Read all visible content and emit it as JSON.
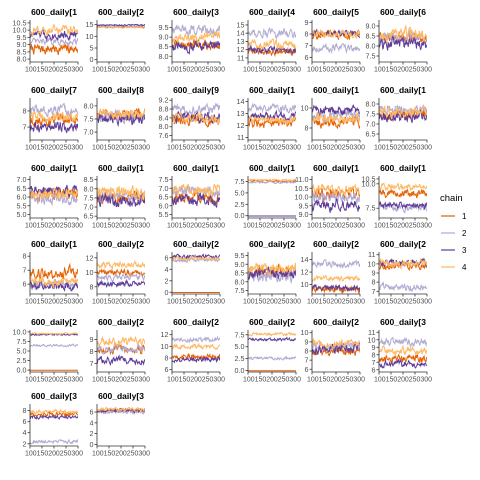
{
  "chart_data": {
    "type": "line",
    "subtype": "trace-plot-facets",
    "x_ticks": [
      "100",
      "150",
      "200",
      "250",
      "300"
    ],
    "x_tick_label_text": "100150200250300",
    "xlim": [
      100,
      300
    ],
    "legend": {
      "title": "chain",
      "position": "right",
      "entries": [
        {
          "label": "1",
          "color": "#E66101"
        },
        {
          "label": "2",
          "color": "#B2ABD2"
        },
        {
          "label": "3",
          "color": "#5E3C99"
        },
        {
          "label": "4",
          "color": "#FDB863"
        }
      ]
    },
    "panels": [
      {
        "title": "600_daily[1",
        "yticks": [
          "10.5",
          "10.0",
          "9.5",
          "9.0",
          "8.5",
          "8.0"
        ],
        "ylim": [
          7.8,
          10.7
        ],
        "levels": [
          8.7,
          9.2,
          9.7,
          10.0
        ],
        "noise": [
          0.35,
          0.2,
          0.3,
          0.3
        ]
      },
      {
        "title": "600_daily[2",
        "yticks": [
          "15",
          "10",
          "5",
          "0"
        ],
        "ylim": [
          -1,
          17
        ],
        "levels": [
          14.0,
          14.3,
          14.8,
          13.8
        ],
        "noise": [
          0.3,
          0.3,
          0.3,
          0.3
        ]
      },
      {
        "title": "600_daily[3",
        "yticks": [
          "9.5",
          "9.0",
          "8.5",
          "8.0"
        ],
        "ylim": [
          7.7,
          9.9
        ],
        "levels": [
          8.6,
          9.4,
          8.5,
          9.0
        ],
        "noise": [
          0.25,
          0.25,
          0.25,
          0.25
        ]
      },
      {
        "title": "600_daily[4",
        "yticks": [
          "15",
          "14",
          "13",
          "12",
          "11"
        ],
        "ylim": [
          10.5,
          15.6
        ],
        "levels": [
          11.8,
          14.0,
          12.0,
          12.6
        ],
        "noise": [
          0.4,
          0.5,
          0.4,
          0.5
        ]
      },
      {
        "title": "600_daily[5",
        "yticks": [
          "9",
          "8",
          "7",
          "6"
        ],
        "ylim": [
          5.6,
          9.2
        ],
        "levels": [
          7.9,
          6.8,
          8.1,
          8.0
        ],
        "noise": [
          0.35,
          0.3,
          0.3,
          0.3
        ]
      },
      {
        "title": "600_daily[6",
        "yticks": [
          "9.0",
          "8.5",
          "8.0",
          "7.5"
        ],
        "ylim": [
          7.2,
          9.3
        ],
        "levels": [
          8.4,
          8.4,
          8.1,
          8.6
        ],
        "noise": [
          0.3,
          0.3,
          0.3,
          0.3
        ]
      },
      {
        "title": "600_daily[7",
        "yticks": [
          "8",
          "7"
        ],
        "ylim": [
          6.2,
          8.8
        ],
        "levels": [
          7.4,
          8.0,
          7.0,
          7.6
        ],
        "noise": [
          0.3,
          0.3,
          0.3,
          0.3
        ]
      },
      {
        "title": "600_daily[8",
        "yticks": [
          "8.0",
          "7.5",
          "7.0"
        ],
        "ylim": [
          6.7,
          8.3
        ],
        "levels": [
          7.7,
          7.6,
          7.5,
          7.7
        ],
        "noise": [
          0.2,
          0.2,
          0.2,
          0.2
        ]
      },
      {
        "title": "600_daily[9",
        "yticks": [
          "9.2",
          "8.8",
          "8.4",
          "8.0",
          "7.6"
        ],
        "ylim": [
          7.4,
          9.3
        ],
        "levels": [
          8.3,
          8.8,
          8.4,
          8.4
        ],
        "noise": [
          0.25,
          0.2,
          0.25,
          0.25
        ]
      },
      {
        "title": "600_daily[1",
        "yticks": [
          "14",
          "13",
          "12",
          "11"
        ],
        "ylim": [
          10.8,
          14.3
        ],
        "levels": [
          12.3,
          13.4,
          12.8,
          12.5
        ],
        "noise": [
          0.4,
          0.3,
          0.3,
          0.3
        ]
      },
      {
        "title": "600_daily[1",
        "yticks": [
          "10",
          "8"
        ],
        "ylim": [
          6.8,
          11.0
        ],
        "levels": [
          8.6,
          9.2,
          9.8,
          9.0
        ],
        "noise": [
          0.5,
          0.5,
          0.5,
          0.5
        ]
      },
      {
        "title": "600_daily[1",
        "yticks": [
          "8.0",
          "7.5",
          "7.0",
          "6.5"
        ],
        "ylim": [
          6.2,
          8.3
        ],
        "levels": [
          7.5,
          7.7,
          7.4,
          7.6
        ],
        "noise": [
          0.25,
          0.25,
          0.25,
          0.25
        ]
      },
      {
        "title": "600_daily[1",
        "yticks": [
          "7.0",
          "6.5",
          "6.0",
          "5.5",
          "5.0"
        ],
        "ylim": [
          4.8,
          7.2
        ],
        "levels": [
          6.2,
          5.9,
          6.4,
          6.2
        ],
        "noise": [
          0.3,
          0.3,
          0.25,
          0.3
        ]
      },
      {
        "title": "600_daily[1",
        "yticks": [
          "8.5",
          "8.0",
          "7.5",
          "7.0",
          "6.5"
        ],
        "ylim": [
          6.4,
          8.7
        ],
        "levels": [
          7.5,
          7.6,
          7.3,
          7.8
        ],
        "noise": [
          0.3,
          0.3,
          0.3,
          0.3
        ]
      },
      {
        "title": "600_daily[1",
        "yticks": [
          "7.5",
          "7.0",
          "6.5",
          "6.0",
          "5.5"
        ],
        "ylim": [
          5.3,
          7.7
        ],
        "levels": [
          6.5,
          6.8,
          6.3,
          6.9
        ],
        "noise": [
          0.3,
          0.3,
          0.3,
          0.3
        ]
      },
      {
        "title": "600_daily[1",
        "yticks": [
          "7.5",
          "5.0",
          "2.5",
          "0.0"
        ],
        "ylim": [
          -0.5,
          8.7
        ],
        "levels": [
          7.6,
          7.3,
          -0.05,
          7.8
        ],
        "noise": [
          0.2,
          0.2,
          0.0,
          0.2
        ]
      },
      {
        "title": "600_daily[1",
        "yticks": [
          "11.0",
          "10.5",
          "10.0",
          "9.5",
          "9.0"
        ],
        "ylim": [
          8.8,
          11.2
        ],
        "levels": [
          10.2,
          10.0,
          9.5,
          10.4
        ],
        "noise": [
          0.3,
          0.3,
          0.3,
          0.3
        ]
      },
      {
        "title": "600_daily[1",
        "yticks": [
          "10.5",
          "10.0",
          "7.5"
        ],
        "ylim": [
          6.5,
          10.8
        ],
        "levels": [
          9.0,
          7.6,
          7.8,
          9.7
        ],
        "noise": [
          0.4,
          0.4,
          0.3,
          0.3
        ]
      },
      {
        "title": "600_daily[1",
        "yticks": [
          "8",
          "7",
          "6"
        ],
        "ylim": [
          5.3,
          8.3
        ],
        "levels": [
          6.8,
          6.0,
          5.9,
          6.2
        ],
        "noise": [
          0.4,
          0.3,
          0.3,
          0.3
        ]
      },
      {
        "title": "600_daily[2",
        "yticks": [
          "12",
          "10",
          "8"
        ],
        "ylim": [
          7.0,
          12.8
        ],
        "levels": [
          10.0,
          9.4,
          8.4,
          11.0
        ],
        "noise": [
          0.4,
          0.4,
          0.4,
          0.4
        ]
      },
      {
        "title": "600_daily[2",
        "yticks": [
          "6",
          "4",
          "2",
          "0"
        ],
        "ylim": [
          -0.3,
          7.0
        ],
        "levels": [
          -0.05,
          5.6,
          6.2,
          5.9
        ],
        "noise": [
          0.0,
          0.3,
          0.3,
          0.3
        ]
      },
      {
        "title": "600_daily[2",
        "yticks": [
          "9.5",
          "9.0",
          "8.5",
          "8.0",
          "7.5"
        ],
        "ylim": [
          7.3,
          9.7
        ],
        "levels": [
          8.6,
          8.3,
          8.5,
          8.8
        ],
        "noise": [
          0.35,
          0.3,
          0.3,
          0.3
        ]
      },
      {
        "title": "600_daily[2",
        "yticks": [
          "14",
          "12",
          "10"
        ],
        "ylim": [
          8.5,
          15.2
        ],
        "levels": [
          9.3,
          13.3,
          9.5,
          11.0
        ],
        "noise": [
          0.5,
          0.5,
          0.4,
          0.4
        ]
      },
      {
        "title": "600_daily[2",
        "yticks": [
          "11",
          "10",
          "9",
          "8",
          "7"
        ],
        "ylim": [
          6.7,
          11.3
        ],
        "levels": [
          9.8,
          7.5,
          10.1,
          10.0
        ],
        "noise": [
          0.4,
          0.4,
          0.4,
          0.4
        ]
      },
      {
        "title": "600_daily[2",
        "yticks": [
          "10.0",
          "7.5",
          "5.0",
          "2.5",
          "0.0"
        ],
        "ylim": [
          -0.5,
          10.5
        ],
        "levels": [
          -0.05,
          6.5,
          9.3,
          9.6
        ],
        "noise": [
          0.0,
          0.3,
          0.2,
          0.2
        ]
      },
      {
        "title": "600_daily[2",
        "yticks": [
          "9",
          "8",
          "7"
        ],
        "ylim": [
          6.3,
          9.8
        ],
        "levels": [
          8.2,
          8.3,
          7.3,
          8.8
        ],
        "noise": [
          0.35,
          0.35,
          0.3,
          0.35
        ]
      },
      {
        "title": "600_daily[2",
        "yticks": [
          "12",
          "10",
          "8",
          "6"
        ],
        "ylim": [
          5.6,
          12.8
        ],
        "levels": [
          8.2,
          11.2,
          7.8,
          10.0
        ],
        "noise": [
          0.4,
          0.4,
          0.4,
          0.4
        ]
      },
      {
        "title": "600_daily[2",
        "yticks": [
          "7.5",
          "5.0",
          "2.5",
          "0.0"
        ],
        "ylim": [
          -0.3,
          8.5
        ],
        "levels": [
          -0.05,
          2.6,
          6.5,
          7.6
        ],
        "noise": [
          0.0,
          0.3,
          0.3,
          0.3
        ]
      },
      {
        "title": "600_daily[2",
        "yticks": [
          "10",
          "9",
          "8",
          "7",
          "6"
        ],
        "ylim": [
          5.7,
          10.3
        ],
        "levels": [
          8.0,
          8.6,
          8.2,
          8.8
        ],
        "noise": [
          0.5,
          0.5,
          0.5,
          0.4
        ]
      },
      {
        "title": "600_daily[3",
        "yticks": [
          "11",
          "10",
          "9",
          "8",
          "7",
          "6"
        ],
        "ylim": [
          5.7,
          11.3
        ],
        "levels": [
          7.5,
          9.7,
          6.8,
          8.5
        ],
        "noise": [
          0.5,
          0.5,
          0.4,
          0.5
        ]
      },
      {
        "title": "600_daily[3",
        "yticks": [
          "8",
          "6",
          "4",
          "2"
        ],
        "ylim": [
          1.6,
          9.2
        ],
        "levels": [
          7.4,
          2.4,
          6.8,
          7.8
        ],
        "noise": [
          0.35,
          0.3,
          0.3,
          0.3
        ]
      },
      {
        "title": "600_daily[3",
        "yticks": [
          "6",
          "4",
          "2",
          "0"
        ],
        "ylim": [
          -0.3,
          7.5
        ],
        "levels": [
          6.2,
          6.0,
          6.3,
          6.5
        ],
        "noise": [
          0.3,
          0.3,
          0.3,
          0.3
        ]
      }
    ]
  }
}
